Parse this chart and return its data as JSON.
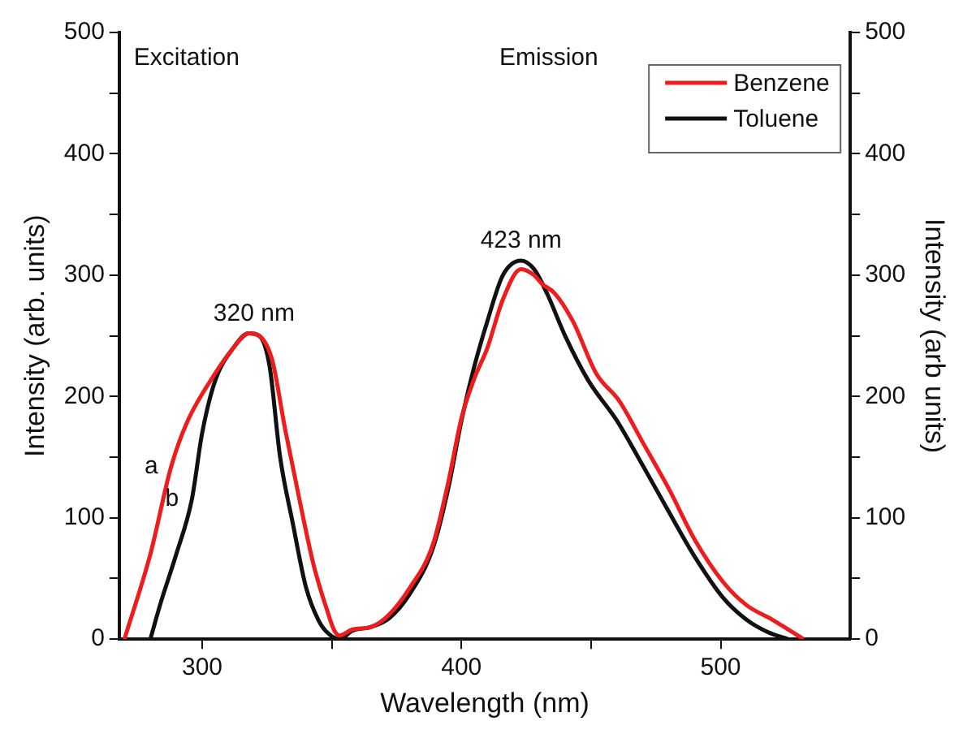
{
  "chart_data": {
    "type": "line",
    "xlabel": "Wavelength (nm)",
    "ylabel": "Intensity (arb. units)",
    "y2label": "Intensity (arb units)",
    "xlim": [
      268,
      550
    ],
    "xticks": [
      300,
      {
        "value": 350,
        "label": null
      },
      400,
      {
        "value": 450,
        "label": null
      },
      500
    ],
    "ylim": [
      0,
      500
    ],
    "yticks": [
      0,
      {
        "value": 50,
        "label": null
      },
      100,
      {
        "value": 150,
        "label": null
      },
      200,
      {
        "value": 250,
        "label": null
      },
      300,
      {
        "value": 350,
        "label": null
      },
      400,
      {
        "value": 450,
        "label": null
      },
      500
    ],
    "y2lim": [
      0,
      500
    ],
    "y2ticks": [
      0,
      {
        "value": 50,
        "label": null
      },
      100,
      {
        "value": 150,
        "label": null
      },
      200,
      {
        "value": 250,
        "label": null
      },
      300,
      {
        "value": 350,
        "label": null
      },
      400,
      {
        "value": 450,
        "label": null
      },
      500
    ],
    "grid": false,
    "legend": "top right",
    "marker": "none",
    "line_style": "solid",
    "series": [
      {
        "name": "Benzene",
        "color": "#ee1c1c",
        "x": [
          270,
          280,
          288,
          294,
          305,
          312,
          318,
          322,
          327,
          332,
          338,
          343,
          348,
          351,
          353,
          358,
          365,
          372,
          380,
          389,
          395,
          400,
          405,
          410,
          416,
          423,
          428,
          431,
          436,
          443,
          452,
          461,
          470,
          480,
          490,
          501,
          510,
          520,
          526,
          532
        ],
        "values": [
          0,
          70,
          142,
          178,
          219,
          240,
          252,
          250,
          230,
          173,
          110,
          61,
          25,
          7,
          3,
          8,
          10,
          20,
          42,
          78,
          130,
          182,
          215,
          240,
          280,
          305,
          300,
          293,
          285,
          262,
          219,
          196,
          162,
          124,
          82,
          47,
          28,
          16,
          8,
          0
        ]
      },
      {
        "name": "Toluene",
        "color": "#111111",
        "x": [
          280,
          284,
          290,
          296,
          300,
          305,
          312,
          318,
          322,
          326,
          330,
          335,
          340,
          345,
          349,
          353,
          358,
          365,
          372,
          380,
          389,
          395,
          400,
          405,
          410,
          416,
          423,
          428,
          433,
          440,
          449,
          460,
          470,
          480,
          490,
          501,
          510,
          518,
          526
        ],
        "values": [
          0,
          30,
          70,
          115,
          170,
          213,
          240,
          252,
          250,
          225,
          151,
          95,
          43,
          15,
          4,
          0,
          7,
          10,
          17,
          37,
          75,
          125,
          180,
          225,
          262,
          300,
          312,
          305,
          285,
          250,
          213,
          180,
          143,
          105,
          68,
          34,
          16,
          6,
          0
        ]
      }
    ],
    "annotations": [
      "Excitation",
      "Emission",
      {
        "text": "320 nm",
        "x": 320,
        "y": 252
      },
      {
        "text": "423 nm",
        "x": 423,
        "y": 312
      },
      {
        "text": "a",
        "x": 288,
        "y": 142
      },
      {
        "text": "b",
        "x": 296,
        "y": 115
      }
    ]
  }
}
